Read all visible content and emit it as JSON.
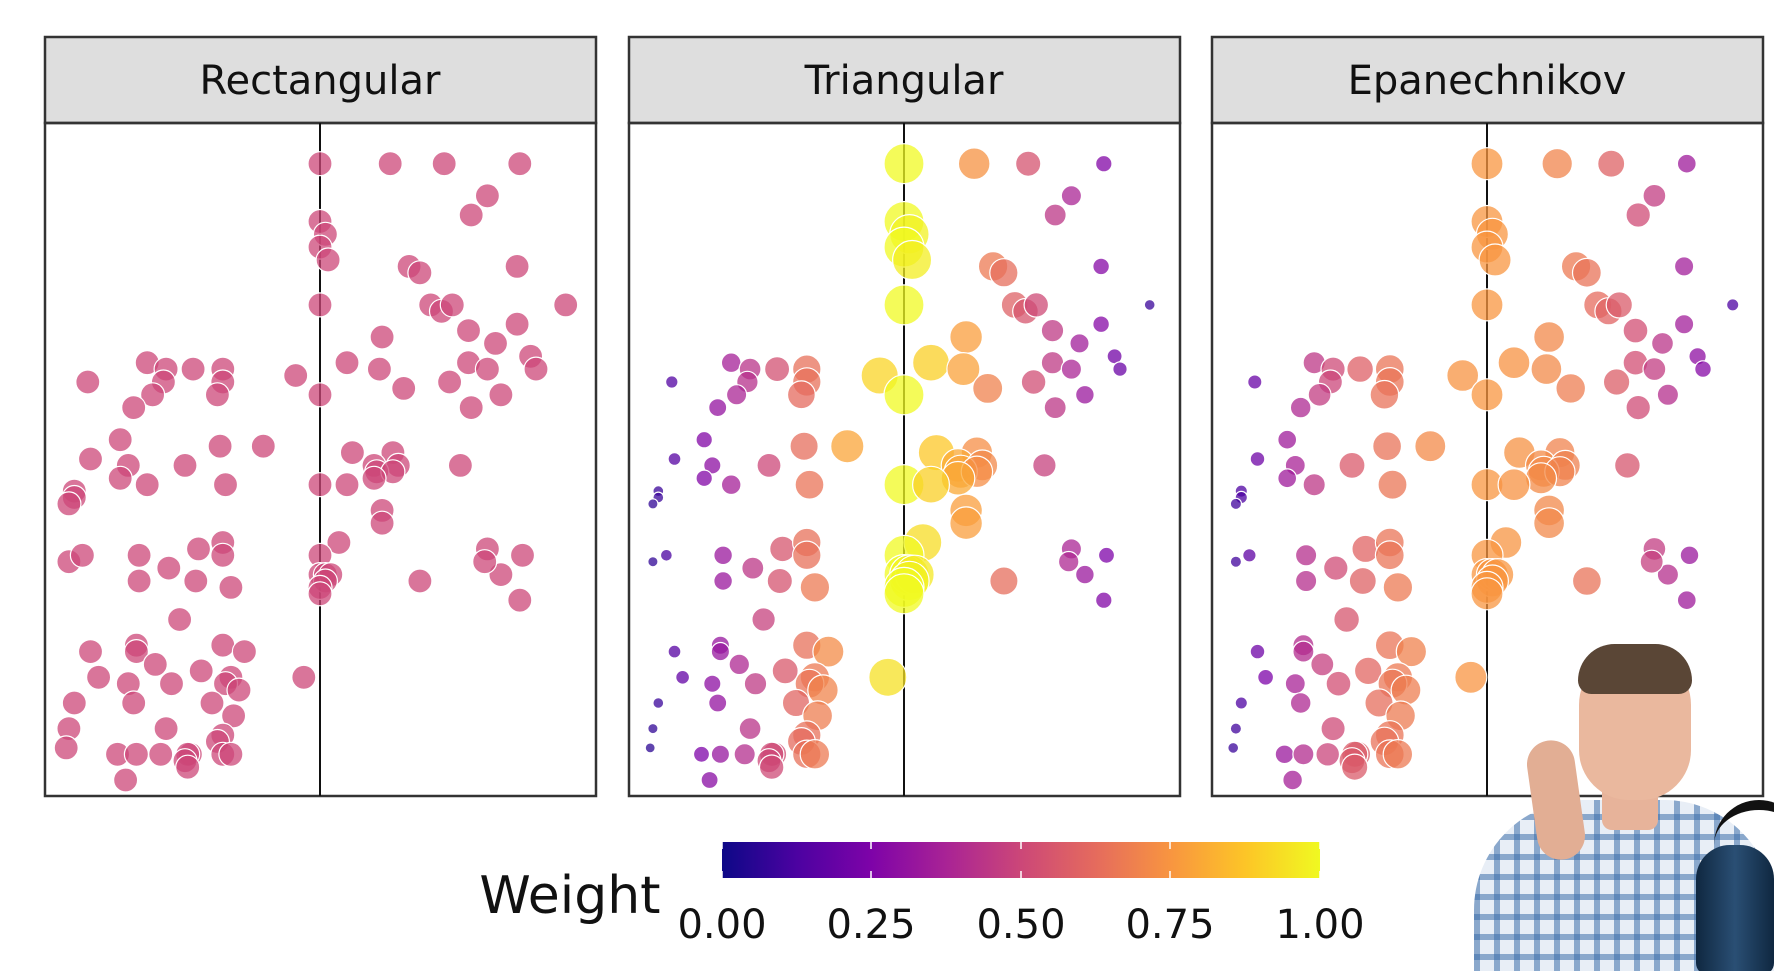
{
  "chart_data": {
    "type": "scatter",
    "facets": [
      "Rectangular",
      "Triangular",
      "Epanechnikov"
    ],
    "x_range": [
      -1,
      1
    ],
    "y_range": [
      0,
      1
    ],
    "cutoff_x": 0,
    "grid": false,
    "color_scale": "plasma",
    "legend": {
      "title": "Weight",
      "ticks": [
        "0.00",
        "0.25",
        "0.50",
        "0.75",
        "1.00"
      ],
      "position": "bottom"
    },
    "points": [
      [
        0.0,
        0.96
      ],
      [
        0.26,
        0.96
      ],
      [
        0.46,
        0.96
      ],
      [
        0.74,
        0.96
      ],
      [
        0.62,
        0.91
      ],
      [
        0.56,
        0.88
      ],
      [
        0.0,
        0.87
      ],
      [
        0.02,
        0.85
      ],
      [
        0.0,
        0.83
      ],
      [
        0.03,
        0.81
      ],
      [
        0.33,
        0.8
      ],
      [
        0.37,
        0.79
      ],
      [
        0.73,
        0.8
      ],
      [
        0.41,
        0.74
      ],
      [
        0.45,
        0.73
      ],
      [
        0.49,
        0.74
      ],
      [
        0.0,
        0.74
      ],
      [
        0.91,
        0.74
      ],
      [
        0.55,
        0.7
      ],
      [
        0.73,
        0.71
      ],
      [
        0.23,
        0.69
      ],
      [
        0.65,
        0.68
      ],
      [
        0.1,
        0.65
      ],
      [
        0.55,
        0.65
      ],
      [
        0.62,
        0.64
      ],
      [
        0.78,
        0.66
      ],
      [
        0.8,
        0.64
      ],
      [
        -0.86,
        0.62
      ],
      [
        -0.64,
        0.65
      ],
      [
        -0.57,
        0.64
      ],
      [
        -0.47,
        0.64
      ],
      [
        -0.36,
        0.64
      ],
      [
        0.22,
        0.64
      ],
      [
        -0.58,
        0.62
      ],
      [
        -0.36,
        0.62
      ],
      [
        -0.09,
        0.63
      ],
      [
        0.48,
        0.62
      ],
      [
        -0.62,
        0.6
      ],
      [
        -0.38,
        0.6
      ],
      [
        0.0,
        0.6
      ],
      [
        0.31,
        0.61
      ],
      [
        0.67,
        0.6
      ],
      [
        0.56,
        0.58
      ],
      [
        -0.69,
        0.58
      ],
      [
        -0.74,
        0.53
      ],
      [
        -0.37,
        0.52
      ],
      [
        -0.21,
        0.52
      ],
      [
        0.12,
        0.51
      ],
      [
        0.27,
        0.51
      ],
      [
        -0.85,
        0.5
      ],
      [
        -0.5,
        0.49
      ],
      [
        0.2,
        0.49
      ],
      [
        0.29,
        0.49
      ],
      [
        0.52,
        0.49
      ],
      [
        -0.71,
        0.49
      ],
      [
        0.21,
        0.48
      ],
      [
        0.27,
        0.48
      ],
      [
        -0.74,
        0.47
      ],
      [
        0.2,
        0.47
      ],
      [
        -0.91,
        0.45
      ],
      [
        0.0,
        0.46
      ],
      [
        -0.64,
        0.46
      ],
      [
        -0.35,
        0.46
      ],
      [
        -0.91,
        0.44
      ],
      [
        0.23,
        0.42
      ],
      [
        -0.93,
        0.43
      ],
      [
        0.1,
        0.46
      ],
      [
        0.23,
        0.4
      ],
      [
        -0.93,
        0.34
      ],
      [
        -0.88,
        0.35
      ],
      [
        -0.67,
        0.35
      ],
      [
        -0.56,
        0.33
      ],
      [
        -0.45,
        0.36
      ],
      [
        0.07,
        0.37
      ],
      [
        0.0,
        0.35
      ],
      [
        0.62,
        0.36
      ],
      [
        -0.36,
        0.37
      ],
      [
        -0.36,
        0.35
      ],
      [
        0.67,
        0.32
      ],
      [
        0.75,
        0.35
      ],
      [
        0.61,
        0.34
      ],
      [
        -0.67,
        0.31
      ],
      [
        -0.46,
        0.31
      ],
      [
        -0.33,
        0.3
      ],
      [
        0.0,
        0.32
      ],
      [
        0.02,
        0.32
      ],
      [
        0.04,
        0.32
      ],
      [
        0.02,
        0.31
      ],
      [
        0.0,
        0.3
      ],
      [
        0.0,
        0.29
      ],
      [
        0.37,
        0.31
      ],
      [
        0.74,
        0.28
      ],
      [
        -0.52,
        0.25
      ],
      [
        -0.68,
        0.21
      ],
      [
        -0.68,
        0.2
      ],
      [
        -0.36,
        0.21
      ],
      [
        -0.28,
        0.2
      ],
      [
        -0.85,
        0.2
      ],
      [
        -0.61,
        0.18
      ],
      [
        -0.82,
        0.16
      ],
      [
        -0.44,
        0.17
      ],
      [
        -0.33,
        0.16
      ],
      [
        -0.55,
        0.15
      ],
      [
        -0.71,
        0.15
      ],
      [
        -0.35,
        0.15
      ],
      [
        -0.06,
        0.16
      ],
      [
        -0.69,
        0.12
      ],
      [
        -0.3,
        0.14
      ],
      [
        -0.4,
        0.12
      ],
      [
        -0.91,
        0.12
      ],
      [
        -0.32,
        0.1
      ],
      [
        -0.93,
        0.08
      ],
      [
        -0.57,
        0.08
      ],
      [
        -0.36,
        0.07
      ],
      [
        -0.38,
        0.06
      ],
      [
        -0.59,
        0.04
      ],
      [
        -0.94,
        0.05
      ],
      [
        -0.75,
        0.04
      ],
      [
        -0.68,
        0.04
      ],
      [
        -0.48,
        0.04
      ],
      [
        -0.36,
        0.04
      ],
      [
        -0.49,
        0.04
      ],
      [
        -0.5,
        0.03
      ],
      [
        -0.33,
        0.04
      ],
      [
        -0.49,
        0.02
      ],
      [
        -0.72,
        0.0
      ]
    ]
  }
}
